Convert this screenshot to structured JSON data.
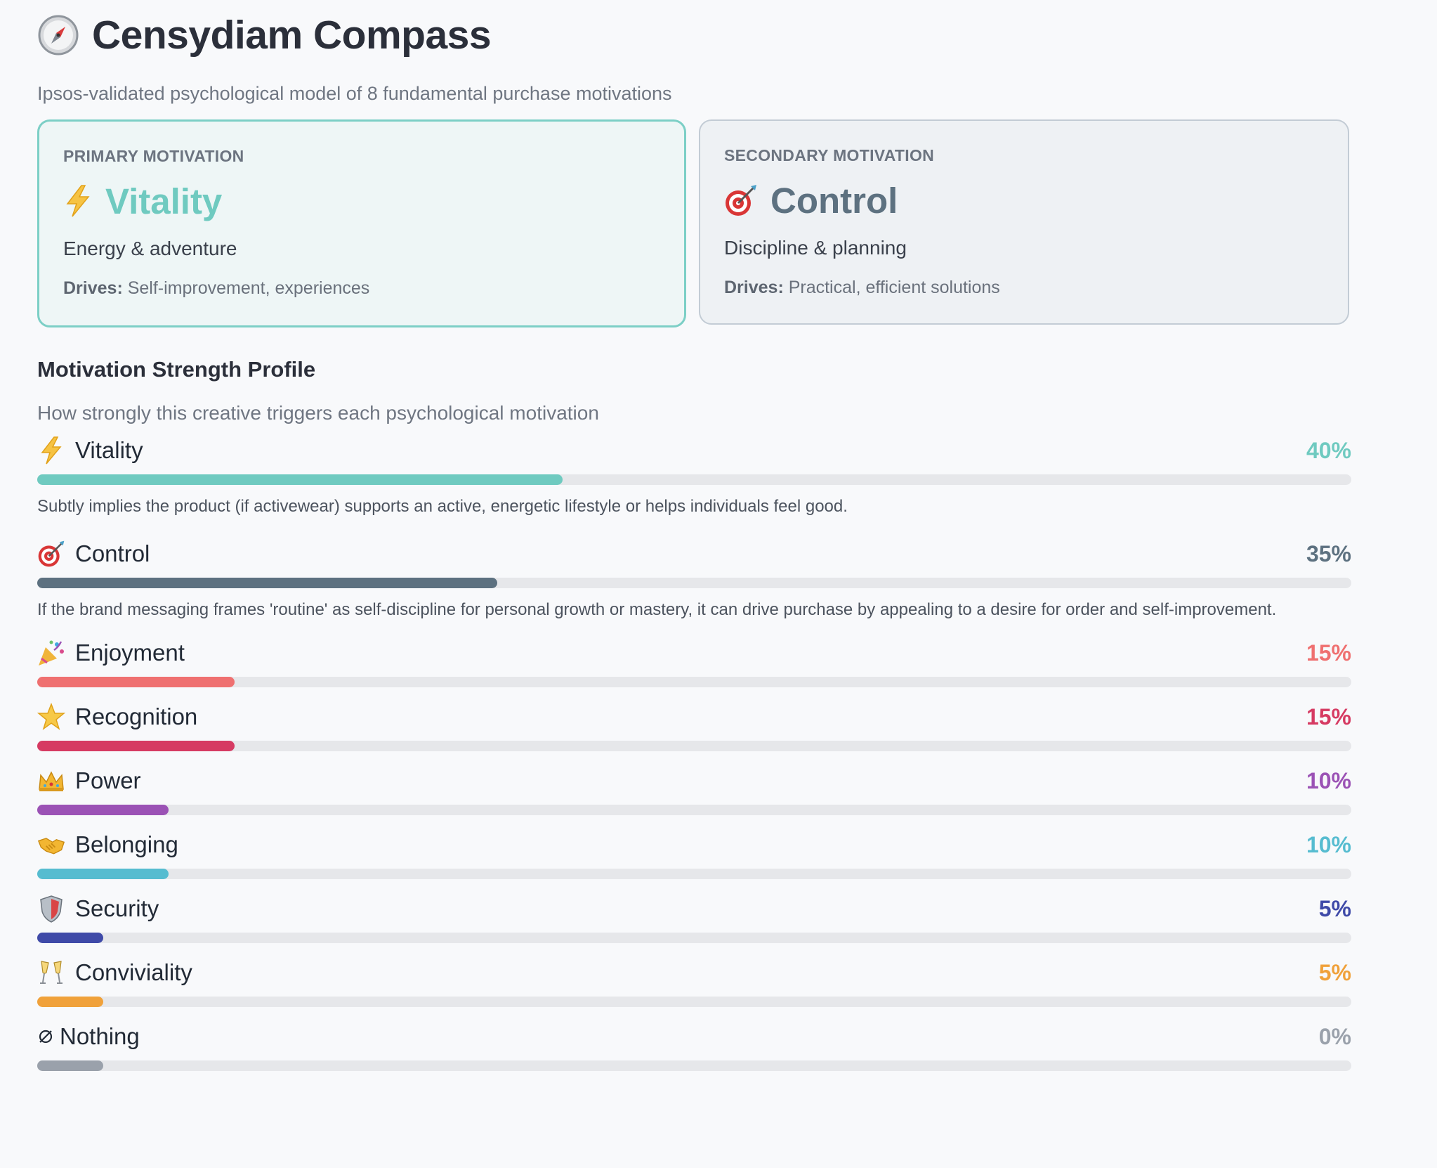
{
  "header": {
    "icon": "compass-icon",
    "title": "Censydiam Compass",
    "subtitle": "Ipsos-validated psychological model of 8 fundamental purchase motivations"
  },
  "primary": {
    "kicker": "PRIMARY MOTIVATION",
    "icon": "lightning-icon",
    "name": "Vitality",
    "desc": "Energy & adventure",
    "drives_label": "Drives:",
    "drives": " Self-improvement, experiences",
    "color": "#6fcac0"
  },
  "secondary": {
    "kicker": "SECONDARY MOTIVATION",
    "icon": "target-icon",
    "name": "Control",
    "desc": "Discipline & planning",
    "drives_label": "Drives:",
    "drives": " Practical, efficient solutions",
    "color": "#5d7180"
  },
  "profile": {
    "title": "Motivation Strength Profile",
    "subtitle": "How strongly this creative triggers each psychological motivation"
  },
  "motivations": [
    {
      "label": "Vitality",
      "icon": "lightning-icon",
      "pct": "40%",
      "value": 40,
      "color": "#6fcac0",
      "desc": "Subtly implies the product (if activewear) supports an active, energetic lifestyle or helps individuals feel good."
    },
    {
      "label": "Control",
      "icon": "target-icon",
      "pct": "35%",
      "value": 35,
      "color": "#5d7180",
      "desc": "If the brand messaging frames 'routine' as self-discipline for personal growth or mastery, it can drive purchase by appealing to a desire for order and self-improvement."
    },
    {
      "label": "Enjoyment",
      "icon": "party-popper-icon",
      "pct": "15%",
      "value": 15,
      "color": "#ef7070",
      "desc": ""
    },
    {
      "label": "Recognition",
      "icon": "star-icon",
      "pct": "15%",
      "value": 15,
      "color": "#d63a62",
      "desc": ""
    },
    {
      "label": "Power",
      "icon": "crown-icon",
      "pct": "10%",
      "value": 10,
      "color": "#9b52b5",
      "desc": ""
    },
    {
      "label": "Belonging",
      "icon": "handshake-icon",
      "pct": "10%",
      "value": 10,
      "color": "#56bcd0",
      "desc": ""
    },
    {
      "label": "Security",
      "icon": "shield-icon",
      "pct": "5%",
      "value": 5,
      "color": "#3f4aa8",
      "desc": ""
    },
    {
      "label": "Conviviality",
      "icon": "champagne-glasses-icon",
      "pct": "5%",
      "value": 5,
      "color": "#f0a13a",
      "desc": ""
    },
    {
      "label": "Nothing",
      "icon": "empty-set-icon",
      "pct": "0%",
      "value": 0,
      "color": "#9aa1ab",
      "desc": ""
    }
  ]
}
